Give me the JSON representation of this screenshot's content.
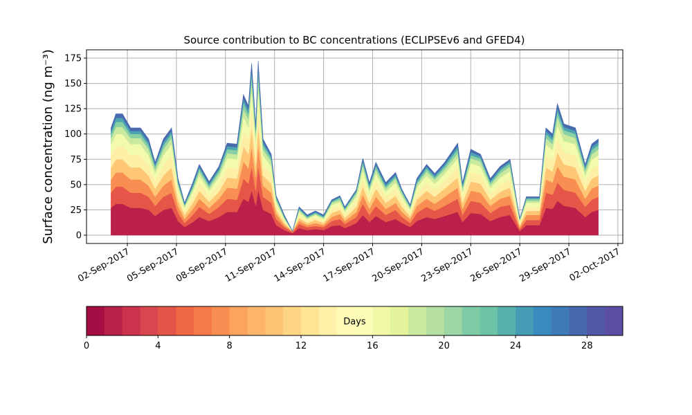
{
  "chart_data": {
    "type": "stacked_area",
    "title": "Source contribution to BC concentrations (ECLIPSEv6 and GFED4)",
    "ylabel": "Surface concentration (ng m⁻³)",
    "x": [
      1.0,
      1.3,
      1.7,
      2.2,
      2.8,
      3.3,
      3.7,
      4.2,
      4.7,
      5.1,
      5.5,
      6.0,
      6.4,
      7.0,
      7.6,
      8.1,
      8.7,
      9.1,
      9.4,
      9.6,
      9.85,
      10.0,
      10.3,
      10.8,
      11.1,
      11.6,
      12.1,
      12.5,
      13.0,
      13.5,
      14.0,
      14.5,
      15.0,
      15.3,
      16.0,
      16.4,
      16.8,
      17.2,
      17.8,
      18.4,
      18.8,
      19.3,
      19.7,
      20.3,
      20.8,
      21.4,
      22.2,
      22.5,
      23.0,
      23.6,
      24.2,
      24.8,
      25.4,
      26.0,
      26.4,
      27.2,
      27.6,
      28.0,
      28.3,
      28.7,
      29.4,
      30.0,
      30.4,
      30.8
    ],
    "series": [
      {
        "color": "#ba2049",
        "values": [
          27,
          31,
          31,
          27,
          27,
          25,
          19,
          25,
          27,
          14,
          8,
          13,
          18,
          14,
          18,
          23,
          23,
          36,
          33,
          44,
          29,
          45,
          25,
          21,
          10,
          5,
          2,
          7,
          5,
          6,
          5,
          9,
          10,
          7,
          12,
          20,
          13,
          19,
          13,
          16,
          12,
          8,
          14,
          18,
          16,
          19,
          23,
          13,
          22,
          21,
          14,
          18,
          20,
          4,
          10,
          10,
          27,
          26,
          34,
          29,
          27,
          18,
          23,
          25
        ]
      },
      {
        "color": "#e55649",
        "values": [
          15,
          17,
          17,
          15,
          15,
          13,
          10,
          13,
          15,
          8,
          4,
          7,
          10,
          7,
          10,
          13,
          12,
          20,
          18,
          24,
          15,
          24,
          13,
          11,
          6,
          3,
          1,
          4,
          3,
          3,
          3,
          5,
          6,
          4,
          6,
          11,
          7,
          10,
          7,
          9,
          6,
          4,
          8,
          10,
          8,
          10,
          13,
          7,
          12,
          11,
          8,
          10,
          10,
          2,
          5,
          5,
          15,
          14,
          18,
          16,
          15,
          10,
          12,
          13
        ]
      },
      {
        "color": "#f88e52",
        "values": [
          13,
          14,
          14,
          13,
          13,
          11,
          9,
          11,
          13,
          7,
          4,
          6,
          8,
          6,
          8,
          11,
          11,
          17,
          15,
          20,
          13,
          21,
          11,
          10,
          5,
          2,
          1,
          3,
          2,
          3,
          2,
          4,
          5,
          3,
          5,
          9,
          6,
          9,
          6,
          7,
          5,
          4,
          7,
          8,
          7,
          9,
          11,
          6,
          10,
          10,
          7,
          8,
          9,
          2,
          5,
          5,
          13,
          12,
          16,
          13,
          13,
          8,
          11,
          11
        ]
      },
      {
        "color": "#fdc776",
        "values": [
          12,
          13,
          13,
          12,
          12,
          10,
          8,
          10,
          12,
          6,
          4,
          6,
          8,
          6,
          7,
          10,
          10,
          15,
          14,
          19,
          12,
          19,
          10,
          9,
          4,
          2,
          0,
          3,
          2,
          3,
          2,
          4,
          4,
          3,
          5,
          8,
          6,
          8,
          6,
          7,
          5,
          3,
          6,
          8,
          7,
          8,
          10,
          6,
          9,
          9,
          6,
          7,
          8,
          2,
          4,
          4,
          12,
          11,
          14,
          12,
          12,
          8,
          10,
          10
        ]
      },
      {
        "color": "#feefa6",
        "values": [
          12,
          13,
          13,
          12,
          12,
          10,
          8,
          10,
          12,
          6,
          4,
          6,
          8,
          6,
          7,
          10,
          10,
          15,
          14,
          19,
          12,
          19,
          10,
          9,
          4,
          2,
          0,
          3,
          2,
          3,
          2,
          4,
          4,
          3,
          5,
          8,
          6,
          8,
          6,
          7,
          5,
          3,
          6,
          8,
          7,
          8,
          10,
          6,
          9,
          9,
          6,
          7,
          8,
          2,
          4,
          4,
          12,
          11,
          14,
          12,
          12,
          8,
          10,
          10
        ]
      },
      {
        "color": "#f2faab",
        "values": [
          11,
          12,
          12,
          11,
          11,
          10,
          7,
          10,
          11,
          6,
          3,
          5,
          7,
          5,
          7,
          9,
          9,
          14,
          13,
          17,
          11,
          17,
          10,
          8,
          4,
          2,
          0,
          3,
          2,
          2,
          2,
          4,
          4,
          3,
          5,
          8,
          5,
          7,
          5,
          6,
          5,
          3,
          6,
          7,
          6,
          7,
          9,
          5,
          9,
          8,
          6,
          7,
          8,
          2,
          4,
          4,
          11,
          10,
          13,
          11,
          11,
          7,
          9,
          10
        ]
      },
      {
        "color": "#c8e99e",
        "values": [
          6,
          7,
          7,
          6,
          6,
          6,
          4,
          6,
          6,
          3,
          2,
          3,
          4,
          3,
          4,
          5,
          5,
          8,
          8,
          10,
          7,
          10,
          6,
          5,
          2,
          1,
          0,
          2,
          1,
          1,
          1,
          2,
          2,
          2,
          3,
          5,
          3,
          4,
          3,
          4,
          3,
          2,
          3,
          4,
          4,
          4,
          5,
          3,
          5,
          5,
          3,
          4,
          5,
          1,
          2,
          2,
          6,
          6,
          8,
          7,
          6,
          4,
          5,
          6
        ]
      },
      {
        "color": "#88d0a4",
        "values": [
          4,
          5,
          5,
          4,
          4,
          4,
          3,
          4,
          4,
          2,
          1,
          2,
          3,
          2,
          3,
          4,
          4,
          6,
          5,
          7,
          4,
          7,
          4,
          3,
          2,
          1,
          0,
          1,
          1,
          1,
          1,
          1,
          2,
          1,
          2,
          3,
          2,
          3,
          2,
          2,
          2,
          1,
          2,
          3,
          2,
          3,
          4,
          2,
          3,
          3,
          2,
          3,
          3,
          1,
          2,
          2,
          4,
          4,
          5,
          4,
          4,
          3,
          4,
          4
        ]
      },
      {
        "color": "#4ca5b1",
        "values": [
          3,
          4,
          4,
          3,
          3,
          3,
          2,
          3,
          3,
          2,
          1,
          2,
          2,
          2,
          2,
          3,
          3,
          4,
          4,
          5,
          3,
          5,
          3,
          2,
          1,
          1,
          0,
          1,
          1,
          1,
          1,
          1,
          1,
          1,
          1,
          2,
          2,
          2,
          2,
          2,
          1,
          1,
          2,
          2,
          2,
          2,
          3,
          2,
          3,
          2,
          2,
          2,
          2,
          0,
          1,
          1,
          3,
          3,
          4,
          3,
          3,
          2,
          3,
          3
        ]
      },
      {
        "color": "#486bb0",
        "values": [
          3,
          4,
          4,
          3,
          3,
          3,
          2,
          3,
          3,
          2,
          1,
          2,
          2,
          2,
          2,
          3,
          3,
          4,
          4,
          5,
          3,
          5,
          3,
          2,
          1,
          1,
          0,
          1,
          1,
          1,
          1,
          1,
          1,
          1,
          1,
          2,
          2,
          2,
          2,
          2,
          1,
          1,
          2,
          2,
          2,
          2,
          3,
          2,
          3,
          2,
          2,
          2,
          2,
          0,
          1,
          1,
          3,
          3,
          4,
          3,
          3,
          2,
          3,
          3
        ]
      }
    ],
    "xlim": [
      -0.5,
      32.3
    ],
    "xticks": [
      {
        "value": 2,
        "label": "02-Sep-2017"
      },
      {
        "value": 5,
        "label": "05-Sep-2017"
      },
      {
        "value": 8,
        "label": "08-Sep-2017"
      },
      {
        "value": 11,
        "label": "11-Sep-2017"
      },
      {
        "value": 14,
        "label": "14-Sep-2017"
      },
      {
        "value": 17,
        "label": "17-Sep-2017"
      },
      {
        "value": 20,
        "label": "20-Sep-2017"
      },
      {
        "value": 23,
        "label": "23-Sep-2017"
      },
      {
        "value": 26,
        "label": "26-Sep-2017"
      },
      {
        "value": 29,
        "label": "29-Sep-2017"
      },
      {
        "value": 32,
        "label": "02-Oct-2017"
      }
    ],
    "ylim": [
      -8.2,
      183.2
    ],
    "yticks": [
      0,
      25,
      50,
      75,
      100,
      125,
      150,
      175
    ],
    "grid": true,
    "colorbar": {
      "label": "Days",
      "lim": [
        0,
        30
      ],
      "ticks": [
        0,
        4,
        8,
        12,
        16,
        20,
        24,
        28
      ],
      "colors": [
        "#a50d45",
        "#b9214a",
        "#cb334d",
        "#da464d",
        "#e45549",
        "#ef6645",
        "#f67a49",
        "#f98e52",
        "#fca35e",
        "#fdb567",
        "#fec574",
        "#fed683",
        "#fee593",
        "#fff1a8",
        "#fffbb8",
        "#fbfdb8",
        "#f1f9a9",
        "#e2f39b",
        "#cbe99d",
        "#b5e0a2",
        "#9bd6a4",
        "#80cba5",
        "#6cc3a6",
        "#58b0ab",
        "#449db4",
        "#3a8bbd",
        "#3d7ab7",
        "#4669ae",
        "#5159a6",
        "#5c4ea2"
      ]
    }
  }
}
